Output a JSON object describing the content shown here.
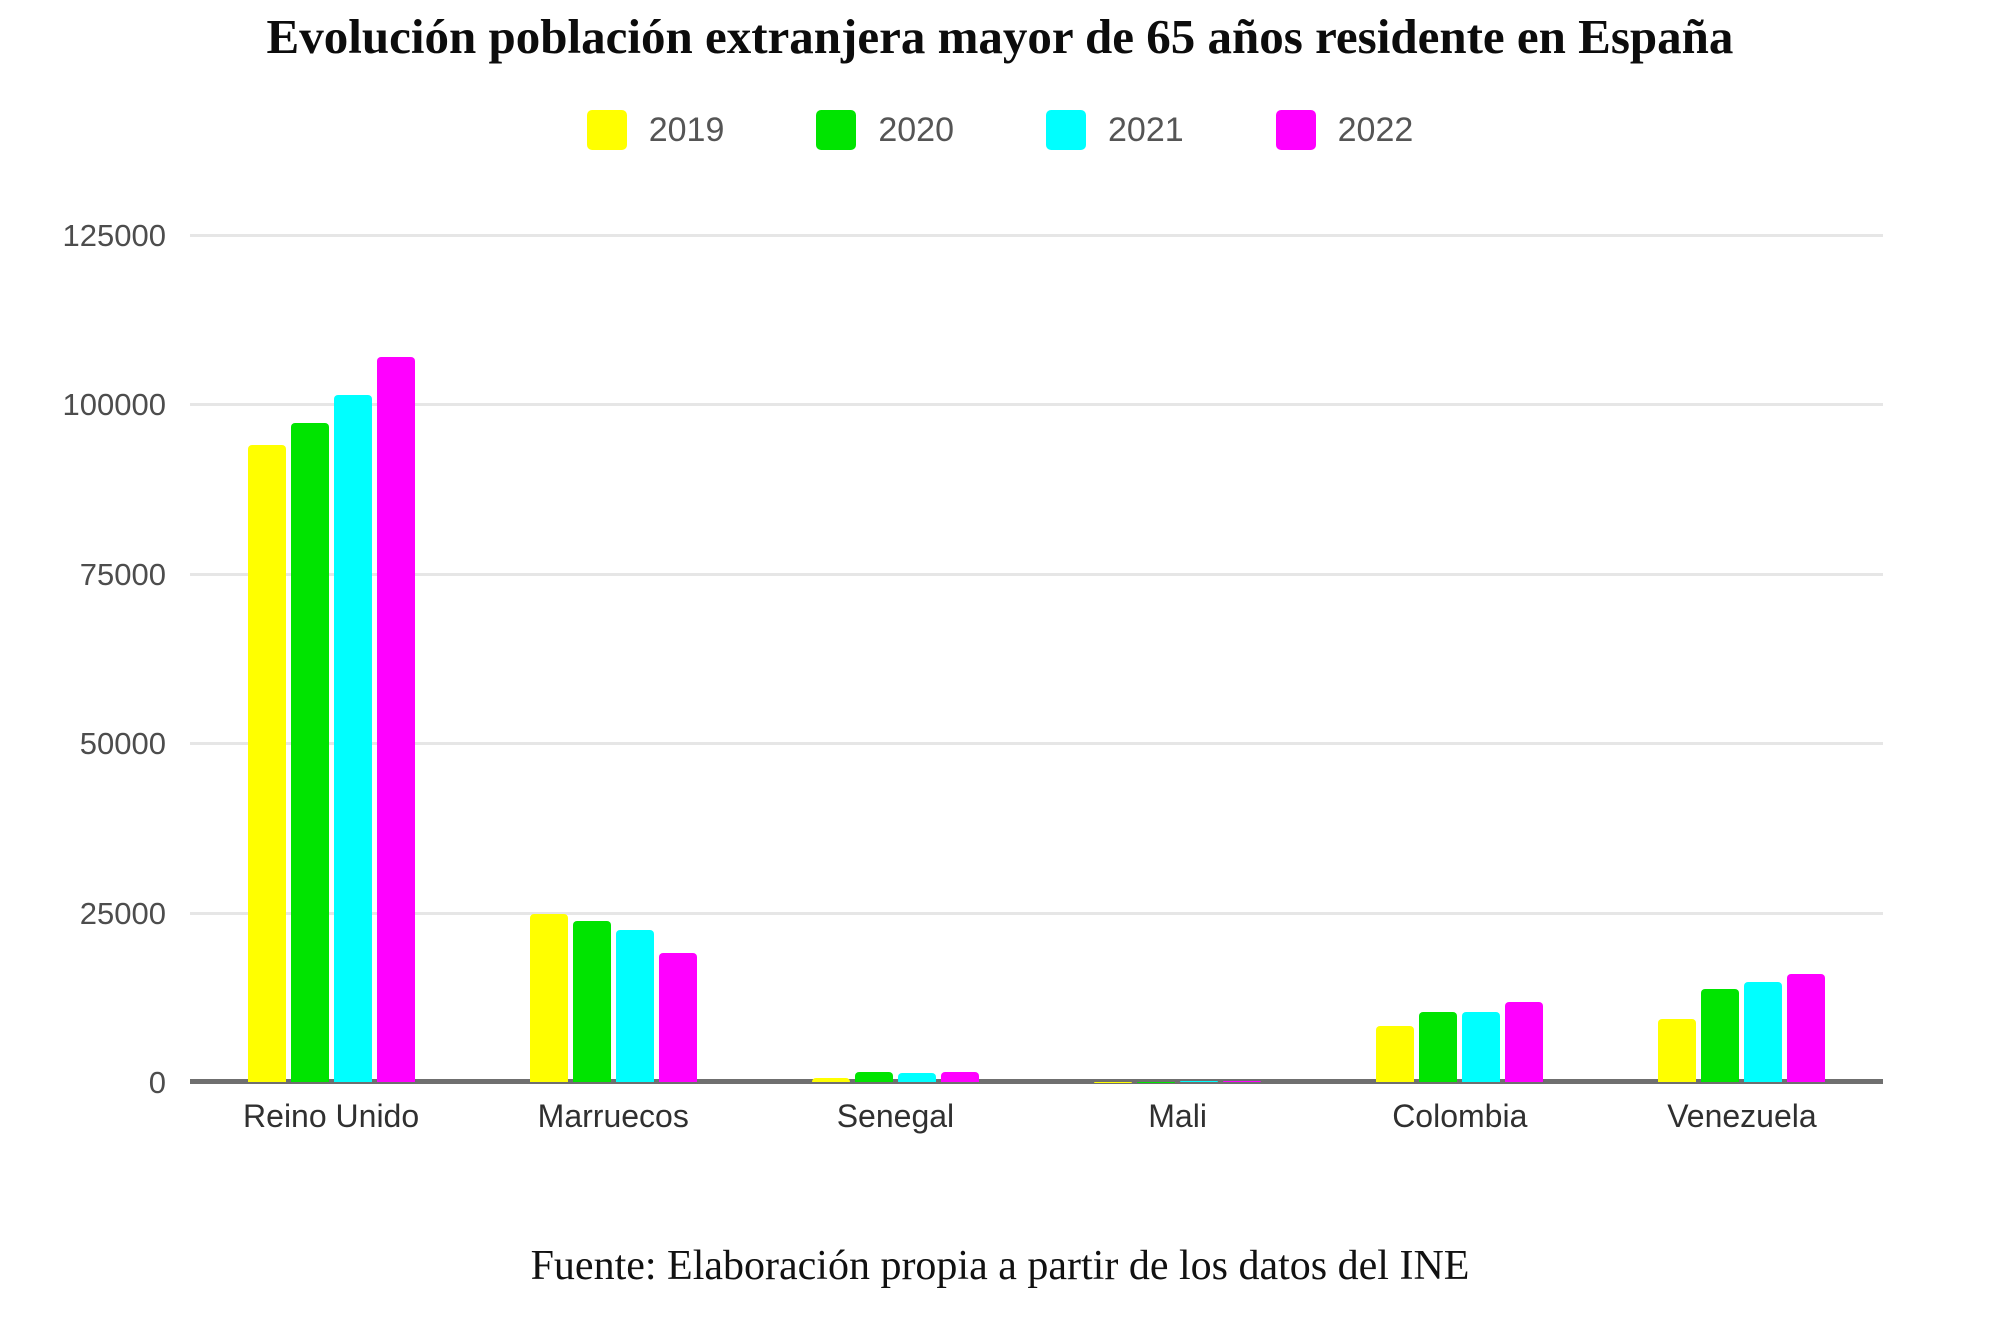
{
  "chart_data": {
    "type": "bar",
    "title": "Evolución población extranjera mayor de 65 años residente en España",
    "source": "Fuente: Elaboración propia a partir de los datos del INE",
    "categories": [
      "Reino Unido",
      "Marruecos",
      "Senegal",
      "Mali",
      "Colombia",
      "Venezuela"
    ],
    "series": [
      {
        "name": "2019",
        "color": "#ffff00",
        "values": [
          94000,
          24800,
          600,
          50,
          8200,
          9300
        ]
      },
      {
        "name": "2020",
        "color": "#00e400",
        "values": [
          97200,
          23800,
          1500,
          70,
          10300,
          13700
        ]
      },
      {
        "name": "2021",
        "color": "#00ffff",
        "values": [
          101400,
          22400,
          1400,
          80,
          10400,
          14800
        ]
      },
      {
        "name": "2022",
        "color": "#ff00ff",
        "values": [
          107000,
          19100,
          1500,
          100,
          11800,
          16000
        ]
      }
    ],
    "ylim": [
      0,
      125000
    ],
    "yticks": [
      0,
      25000,
      50000,
      75000,
      100000,
      125000
    ],
    "xlabel": "",
    "ylabel": "",
    "grid": "horizontal",
    "legend_position": "top",
    "gridline_color": "#e6e6e6",
    "axis_color": "#6f6f6f",
    "background_color": "#ffffff"
  }
}
